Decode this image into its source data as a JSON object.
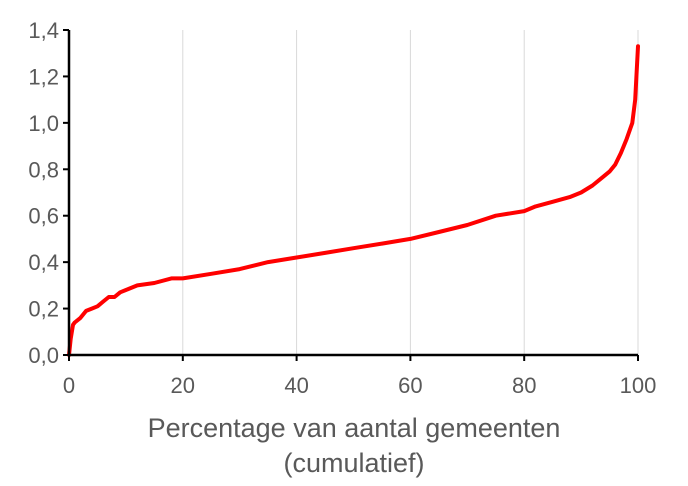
{
  "chart_data": {
    "type": "line",
    "title": "",
    "xlabel_lines": [
      "Percentage van aantal gemeenten",
      "(cumulatief)"
    ],
    "ylabel": "",
    "xlim": [
      0,
      100
    ],
    "ylim": [
      0,
      1.4
    ],
    "x_ticks": [
      0,
      20,
      40,
      60,
      80,
      100
    ],
    "y_ticks": [
      0.0,
      0.2,
      0.4,
      0.6,
      0.8,
      1.0,
      1.2,
      1.4
    ],
    "x_tick_labels": [
      "0",
      "20",
      "40",
      "60",
      "80",
      "100"
    ],
    "y_tick_labels": [
      "0,0",
      "0,2",
      "0,4",
      "0,6",
      "0,8",
      "1,0",
      "1,2",
      "1,4"
    ],
    "grid": "vertical",
    "legend": "none",
    "series": [
      {
        "color": "#ff0000",
        "x": [
          0,
          0.3,
          0.7,
          1,
          2,
          3,
          4,
          5,
          6,
          7,
          8,
          9,
          10,
          12,
          15,
          18,
          20,
          25,
          30,
          35,
          40,
          45,
          50,
          55,
          60,
          65,
          70,
          75,
          80,
          82,
          85,
          88,
          90,
          92,
          94,
          95,
          96,
          97,
          98,
          99,
          99.5,
          100
        ],
        "y": [
          0.0,
          0.07,
          0.13,
          0.14,
          0.16,
          0.19,
          0.2,
          0.21,
          0.23,
          0.25,
          0.25,
          0.27,
          0.28,
          0.3,
          0.31,
          0.33,
          0.33,
          0.35,
          0.37,
          0.4,
          0.42,
          0.44,
          0.46,
          0.48,
          0.5,
          0.53,
          0.56,
          0.6,
          0.62,
          0.64,
          0.66,
          0.68,
          0.7,
          0.73,
          0.77,
          0.79,
          0.82,
          0.87,
          0.93,
          1.0,
          1.1,
          1.33
        ]
      }
    ]
  }
}
